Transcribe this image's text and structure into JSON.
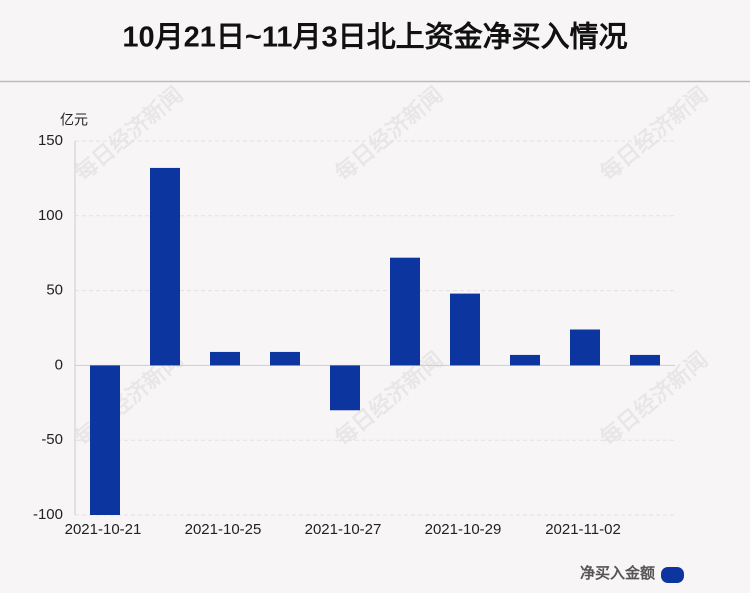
{
  "chart_data": {
    "type": "bar",
    "title": "10月21日~11月3日北上资金净买入情况",
    "y_unit": "亿元",
    "watermark": "每日经济新闻",
    "categories": [
      "2021-10-21",
      null,
      "2021-10-25",
      null,
      "2021-10-27",
      null,
      "2021-10-29",
      null,
      "2021-11-02",
      null
    ],
    "series": [
      {
        "name": "净买入金额",
        "color": "#0d35a0",
        "values": [
          -100,
          132,
          9,
          9,
          -30,
          72,
          48,
          7,
          24,
          7
        ]
      }
    ],
    "ylim": [
      -100,
      150
    ],
    "yticks": [
      -100,
      -50,
      0,
      50,
      100,
      150
    ],
    "grid": true,
    "legend": "bottom-right"
  }
}
